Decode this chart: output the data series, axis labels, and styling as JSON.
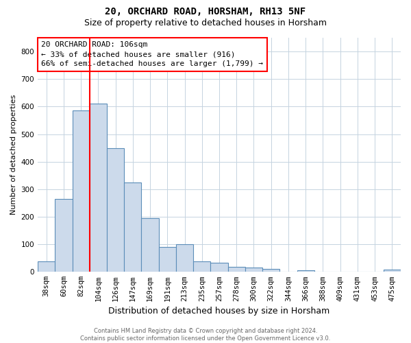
{
  "title_line1": "20, ORCHARD ROAD, HORSHAM, RH13 5NF",
  "title_line2": "Size of property relative to detached houses in Horsham",
  "xlabel": "Distribution of detached houses by size in Horsham",
  "ylabel": "Number of detached properties",
  "bins": [
    "38sqm",
    "60sqm",
    "82sqm",
    "104sqm",
    "126sqm",
    "147sqm",
    "169sqm",
    "191sqm",
    "213sqm",
    "235sqm",
    "257sqm",
    "278sqm",
    "300sqm",
    "322sqm",
    "344sqm",
    "366sqm",
    "388sqm",
    "409sqm",
    "431sqm",
    "453sqm",
    "475sqm"
  ],
  "values": [
    38,
    265,
    585,
    610,
    450,
    325,
    195,
    91,
    100,
    38,
    33,
    17,
    15,
    10,
    0,
    6,
    0,
    0,
    0,
    0,
    7
  ],
  "bar_color": "#ccdaeb",
  "bar_edge_color": "#5b8db8",
  "vline_x_idx": 2.5,
  "vline_color": "red",
  "annotation_text": "20 ORCHARD ROAD: 106sqm\n← 33% of detached houses are smaller (916)\n66% of semi-detached houses are larger (1,799) →",
  "annotation_box_color": "white",
  "annotation_box_edge_color": "red",
  "ylim": [
    0,
    850
  ],
  "yticks": [
    0,
    100,
    200,
    300,
    400,
    500,
    600,
    700,
    800
  ],
  "footer_text": "Contains HM Land Registry data © Crown copyright and database right 2024.\nContains public sector information licensed under the Open Government Licence v3.0.",
  "background_color": "#ffffff",
  "grid_color": "#c5d3e0",
  "title_fontsize": 10,
  "subtitle_fontsize": 9,
  "xlabel_fontsize": 9,
  "ylabel_fontsize": 8,
  "tick_fontsize": 7.5
}
